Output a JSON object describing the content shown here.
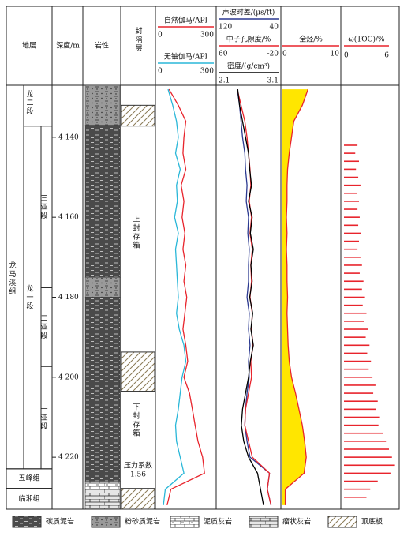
{
  "chart_data": {
    "type": "well_log",
    "headers": {
      "strata": "地层",
      "depth": "深度/m",
      "lithology": "岩性",
      "seal": "封隔层"
    },
    "ylim": [
      4127,
      4233
    ],
    "yticks": [
      {
        "value": 4140,
        "label": "4 140"
      },
      {
        "value": 4160,
        "label": "4 160"
      },
      {
        "value": 4180,
        "label": "4 180"
      },
      {
        "value": 4200,
        "label": "4 200"
      },
      {
        "value": 4220,
        "label": "4 220"
      }
    ],
    "formations": [
      {
        "name": "龙马溪组",
        "top": 4127,
        "bottom": 4222.9
      },
      {
        "name": "五峰组",
        "top": 4222.9,
        "bottom": 4227.8
      },
      {
        "name": "临湘组",
        "top": 4227.8,
        "bottom": 4233
      }
    ],
    "members": [
      {
        "name": "龙二段",
        "top": 4127,
        "bottom": 4137.2
      },
      {
        "name": "龙一段",
        "top": 4137.2,
        "bottom": 4222.9
      }
    ],
    "submembers": [
      {
        "name": "三亚段",
        "top": 4137.2,
        "bottom": 4177.6
      },
      {
        "name": "二亚段",
        "top": 4177.6,
        "bottom": 4197.3
      },
      {
        "name": "一亚段",
        "top": 4197.3,
        "bottom": 4222.9
      }
    ],
    "lithology": [
      {
        "top": 4127,
        "bottom": 4137,
        "type": 1
      },
      {
        "top": 4137,
        "bottom": 4175,
        "type": 0
      },
      {
        "top": 4175,
        "bottom": 4180,
        "type": 1
      },
      {
        "top": 4180,
        "bottom": 4226,
        "type": 0
      },
      {
        "top": 4226,
        "bottom": 4228,
        "type": 2
      },
      {
        "top": 4228,
        "bottom": 4233,
        "type": 3
      }
    ],
    "seals": [
      {
        "top": 4132,
        "bottom": 4137.2
      },
      {
        "top": 4193.7,
        "bottom": 4203.5
      },
      {
        "top": 4227.8,
        "bottom": 4233
      }
    ],
    "seal_labels": [
      "上封存箱",
      "下封存箱"
    ],
    "pressure": {
      "label": "压力系数",
      "value": 1.56
    },
    "depth": [
      4128,
      4132,
      4136,
      4140,
      4144,
      4148,
      4152,
      4156,
      4160,
      4164,
      4168,
      4172,
      4176,
      4180,
      4184,
      4188,
      4192,
      4196,
      4200,
      4204,
      4208,
      4212,
      4216,
      4220,
      4224,
      4228,
      4232
    ],
    "series": [
      {
        "name": "自然伽马/API",
        "color": "#e8242c",
        "track": 0,
        "xlim": [
          0,
          300
        ],
        "values": [
          60,
          110,
          150,
          140,
          135,
          150,
          125,
          140,
          130,
          145,
          135,
          150,
          140,
          155,
          145,
          135,
          150,
          160,
          140,
          170,
          185,
          200,
          215,
          240,
          250,
          70,
          50
        ]
      },
      {
        "name": "无铀伽马/API",
        "color": "#2ab7d8",
        "track": 0,
        "xlim": [
          0,
          300
        ],
        "values": [
          55,
          80,
          100,
          110,
          95,
          120,
          100,
          105,
          90,
          110,
          95,
          100,
          105,
          110,
          100,
          115,
          140,
          150,
          130,
          120,
          110,
          95,
          100,
          120,
          140,
          40,
          30
        ]
      },
      {
        "name": "声波时差/(μs/ft)",
        "color": "#2b3990",
        "track": 1,
        "xlim": [
          120,
          40
        ],
        "values": [
          95,
          92,
          90,
          88,
          85,
          84,
          82,
          83,
          80,
          81,
          79,
          80,
          80,
          82,
          79,
          80,
          78,
          80,
          79,
          82,
          84,
          85,
          82,
          78,
          52,
          55,
          50
        ]
      },
      {
        "name": "中子孔隙度/%",
        "color": "#e8242c",
        "track": 1,
        "xlim": [
          60,
          -20
        ],
        "values": [
          35,
          30,
          25,
          22,
          20,
          18,
          17,
          19,
          16,
          18,
          15,
          17,
          16,
          18,
          15,
          16,
          14,
          17,
          16,
          20,
          24,
          25,
          20,
          15,
          -8,
          -5,
          -10
        ]
      },
      {
        "name": "密度/(g/cm³)",
        "color": "#000000",
        "track": 1,
        "xlim": [
          2.1,
          3.1
        ],
        "values": [
          2.42,
          2.45,
          2.5,
          2.55,
          2.6,
          2.62,
          2.65,
          2.6,
          2.66,
          2.63,
          2.68,
          2.64,
          2.66,
          2.62,
          2.67,
          2.64,
          2.68,
          2.63,
          2.6,
          2.55,
          2.5,
          2.48,
          2.52,
          2.6,
          2.75,
          2.8,
          2.85
        ]
      },
      {
        "name": "全烃/%",
        "color": "#e8242c",
        "fill": "#ffe600",
        "track": 2,
        "xlim": [
          0,
          10
        ],
        "values": [
          4.5,
          3.5,
          2.0,
          1.6,
          1.2,
          0.9,
          0.8,
          0.8,
          0.7,
          0.8,
          0.7,
          0.8,
          0.8,
          0.9,
          0.8,
          0.9,
          1.0,
          1.2,
          1.6,
          2.3,
          2.9,
          3.5,
          3.9,
          4.2,
          3.8,
          0.5,
          0.5
        ]
      }
    ],
    "toc": {
      "name": "ω(TOC)/%",
      "color": "#e8242c",
      "xlim": [
        0,
        6
      ],
      "depth": [
        4142,
        4144,
        4146,
        4148,
        4150,
        4152,
        4154,
        4156,
        4158,
        4160,
        4162,
        4164,
        4166,
        4168,
        4170,
        4172,
        4174,
        4176,
        4178,
        4180,
        4182,
        4184,
        4186,
        4188,
        4190,
        4192,
        4194,
        4196,
        4198,
        4200,
        4202,
        4204,
        4206,
        4208,
        4210,
        4212,
        4214,
        4216,
        4218,
        4220,
        4222,
        4224,
        4226,
        4228,
        4230
      ],
      "values": [
        1.8,
        1.5,
        2.0,
        1.6,
        1.9,
        2.2,
        1.7,
        2.0,
        1.8,
        2.1,
        1.9,
        2.3,
        2.0,
        1.8,
        2.2,
        2.4,
        2.1,
        2.6,
        2.4,
        2.8,
        2.5,
        3.0,
        2.7,
        3.2,
        2.9,
        3.4,
        3.1,
        3.6,
        3.3,
        3.8,
        4.2,
        3.9,
        4.5,
        4.3,
        4.8,
        4.6,
        5.2,
        5.6,
        6.0,
        6.4,
        6.8,
        6.2,
        4.5,
        3.5,
        3.0
      ]
    },
    "legend": [
      "碳质泥岩",
      "粉砂质泥岩",
      "泥质灰岩",
      "瘤状灰岩",
      "顶底板"
    ]
  }
}
